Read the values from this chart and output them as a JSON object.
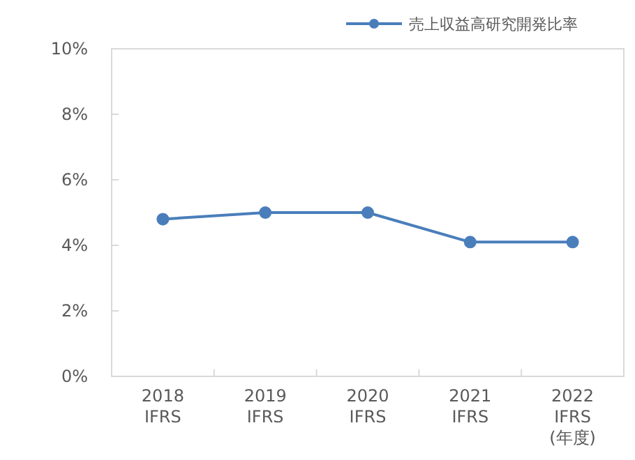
{
  "chart_data": {
    "type": "line",
    "categories": [
      "2018\nIFRS",
      "2019\nIFRS",
      "2020\nIFRS",
      "2021\nIFRS",
      "2022\nIFRS\n(年度)"
    ],
    "series": [
      {
        "name": "売上収益高研究開発比率",
        "color": "#4a7ebb",
        "values": [
          4.8,
          5.0,
          5.0,
          4.1,
          4.1
        ]
      }
    ],
    "ylim": [
      0,
      10
    ],
    "yticks": [
      {
        "value": 0,
        "label": "0%"
      },
      {
        "value": 2,
        "label": "2%"
      },
      {
        "value": 4,
        "label": "4%"
      },
      {
        "value": 6,
        "label": "6%"
      },
      {
        "value": 8,
        "label": "8%"
      },
      {
        "value": 10,
        "label": "10%"
      }
    ],
    "legend": "top right",
    "marker": "circle",
    "line_style": "solid"
  }
}
